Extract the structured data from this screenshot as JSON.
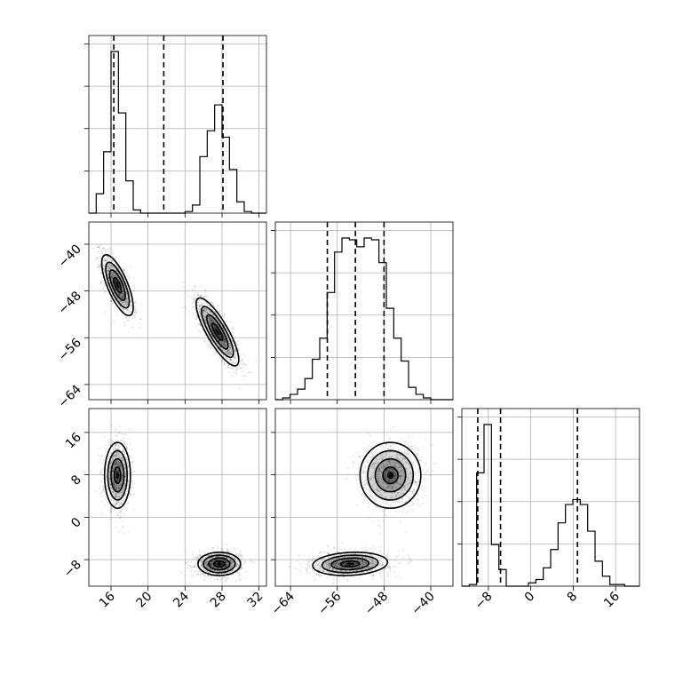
{
  "chart_data": {
    "type": "corner",
    "parameters": [
      {
        "ticks": [
          16,
          20,
          24,
          28,
          32
        ],
        "range": [
          13.6,
          32.8
        ],
        "histogram": {
          "bin_edges": [
            13.6,
            14.4,
            15.2,
            16.0,
            16.8,
            17.6,
            18.4,
            19.2,
            20.0,
            20.8,
            21.6,
            22.4,
            23.2,
            24.0,
            24.8,
            25.6,
            26.4,
            27.2,
            28.0,
            28.8,
            29.6,
            30.4,
            31.2,
            32.0,
            32.8
          ],
          "counts": [
            0,
            0.12,
            0.38,
            1.0,
            0.62,
            0.2,
            0.02,
            0,
            0,
            0,
            0,
            0,
            0,
            0.01,
            0.05,
            0.35,
            0.51,
            0.67,
            0.47,
            0.27,
            0.07,
            0.01,
            0,
            0
          ]
        },
        "quantiles": [
          16.3,
          21.7,
          28.1
        ]
      },
      {
        "ticks": [
          -64,
          -56,
          -48,
          -40
        ],
        "range": [
          -66.6,
          -36.2
        ],
        "histogram": {
          "bin_edges": [
            -66.6,
            -65.333,
            -64.067,
            -62.8,
            -61.533,
            -60.267,
            -59.0,
            -57.733,
            -56.467,
            -55.2,
            -53.933,
            -52.667,
            -51.4,
            -50.133,
            -48.867,
            -47.6,
            -46.333,
            -45.067,
            -43.8,
            -42.533,
            -41.267,
            -40.0,
            -38.733,
            -37.467,
            -36.2
          ],
          "counts": [
            0,
            0.01,
            0.03,
            0.06,
            0.12,
            0.23,
            0.35,
            0.61,
            0.84,
            0.92,
            0.91,
            0.87,
            0.92,
            0.91,
            0.78,
            0.52,
            0.35,
            0.22,
            0.07,
            0.03,
            0.01,
            0,
            0,
            0
          ]
        },
        "quantiles": [
          -57.7,
          -52.9,
          -48.0
        ]
      },
      {
        "ticks": [
          -8,
          0,
          8,
          16
        ],
        "range": [
          -13.0,
          20.5
        ],
        "histogram": {
          "bin_edges": [
            -13.0,
            -11.604,
            -10.208,
            -8.812,
            -7.417,
            -6.021,
            -4.625,
            -3.229,
            -1.833,
            -0.438,
            0.958,
            2.354,
            3.75,
            5.146,
            6.542,
            7.938,
            9.333,
            10.729,
            12.125,
            13.521,
            14.917,
            16.313,
            17.708,
            19.104,
            20.5
          ],
          "counts": [
            0,
            0.01,
            0.68,
            0.97,
            0.25,
            0.1,
            0,
            0,
            0,
            0.02,
            0.04,
            0.11,
            0.22,
            0.38,
            0.49,
            0.52,
            0.49,
            0.33,
            0.15,
            0.06,
            0.01,
            0.01,
            0,
            0
          ]
        },
        "quantiles": [
          -10.0,
          -5.7,
          8.8
        ]
      }
    ],
    "pairs": [
      {
        "x_param": 0,
        "y_param": 1,
        "clusters": [
          {
            "cx": 16.7,
            "cy": -47.0,
            "sx": 0.85,
            "sy": 2.6,
            "rho": -0.72,
            "n": 1100
          },
          {
            "cx": 27.5,
            "cy": -55.0,
            "sx": 1.15,
            "sy": 2.9,
            "rho": -0.82,
            "n": 1400
          }
        ]
      },
      {
        "x_param": 0,
        "y_param": 2,
        "clusters": [
          {
            "cx": 16.7,
            "cy": 7.9,
            "sx": 0.7,
            "sy": 3.1,
            "rho": 0.0,
            "n": 1100
          },
          {
            "cx": 27.7,
            "cy": -8.8,
            "sx": 1.15,
            "sy": 1.1,
            "rho": 0.0,
            "n": 1400
          }
        ]
      },
      {
        "x_param": 1,
        "y_param": 2,
        "clusters": [
          {
            "cx": -46.9,
            "cy": 7.9,
            "sx": 2.6,
            "sy": 3.1,
            "rho": 0.0,
            "n": 1100
          },
          {
            "cx": -53.8,
            "cy": -8.8,
            "sx": 3.2,
            "sy": 1.1,
            "rho": 0.15,
            "n": 1400
          }
        ]
      }
    ],
    "contour_levels_sigma": [
      0.5,
      1.0,
      1.5,
      2.0
    ],
    "grid": true,
    "legend": "none"
  }
}
